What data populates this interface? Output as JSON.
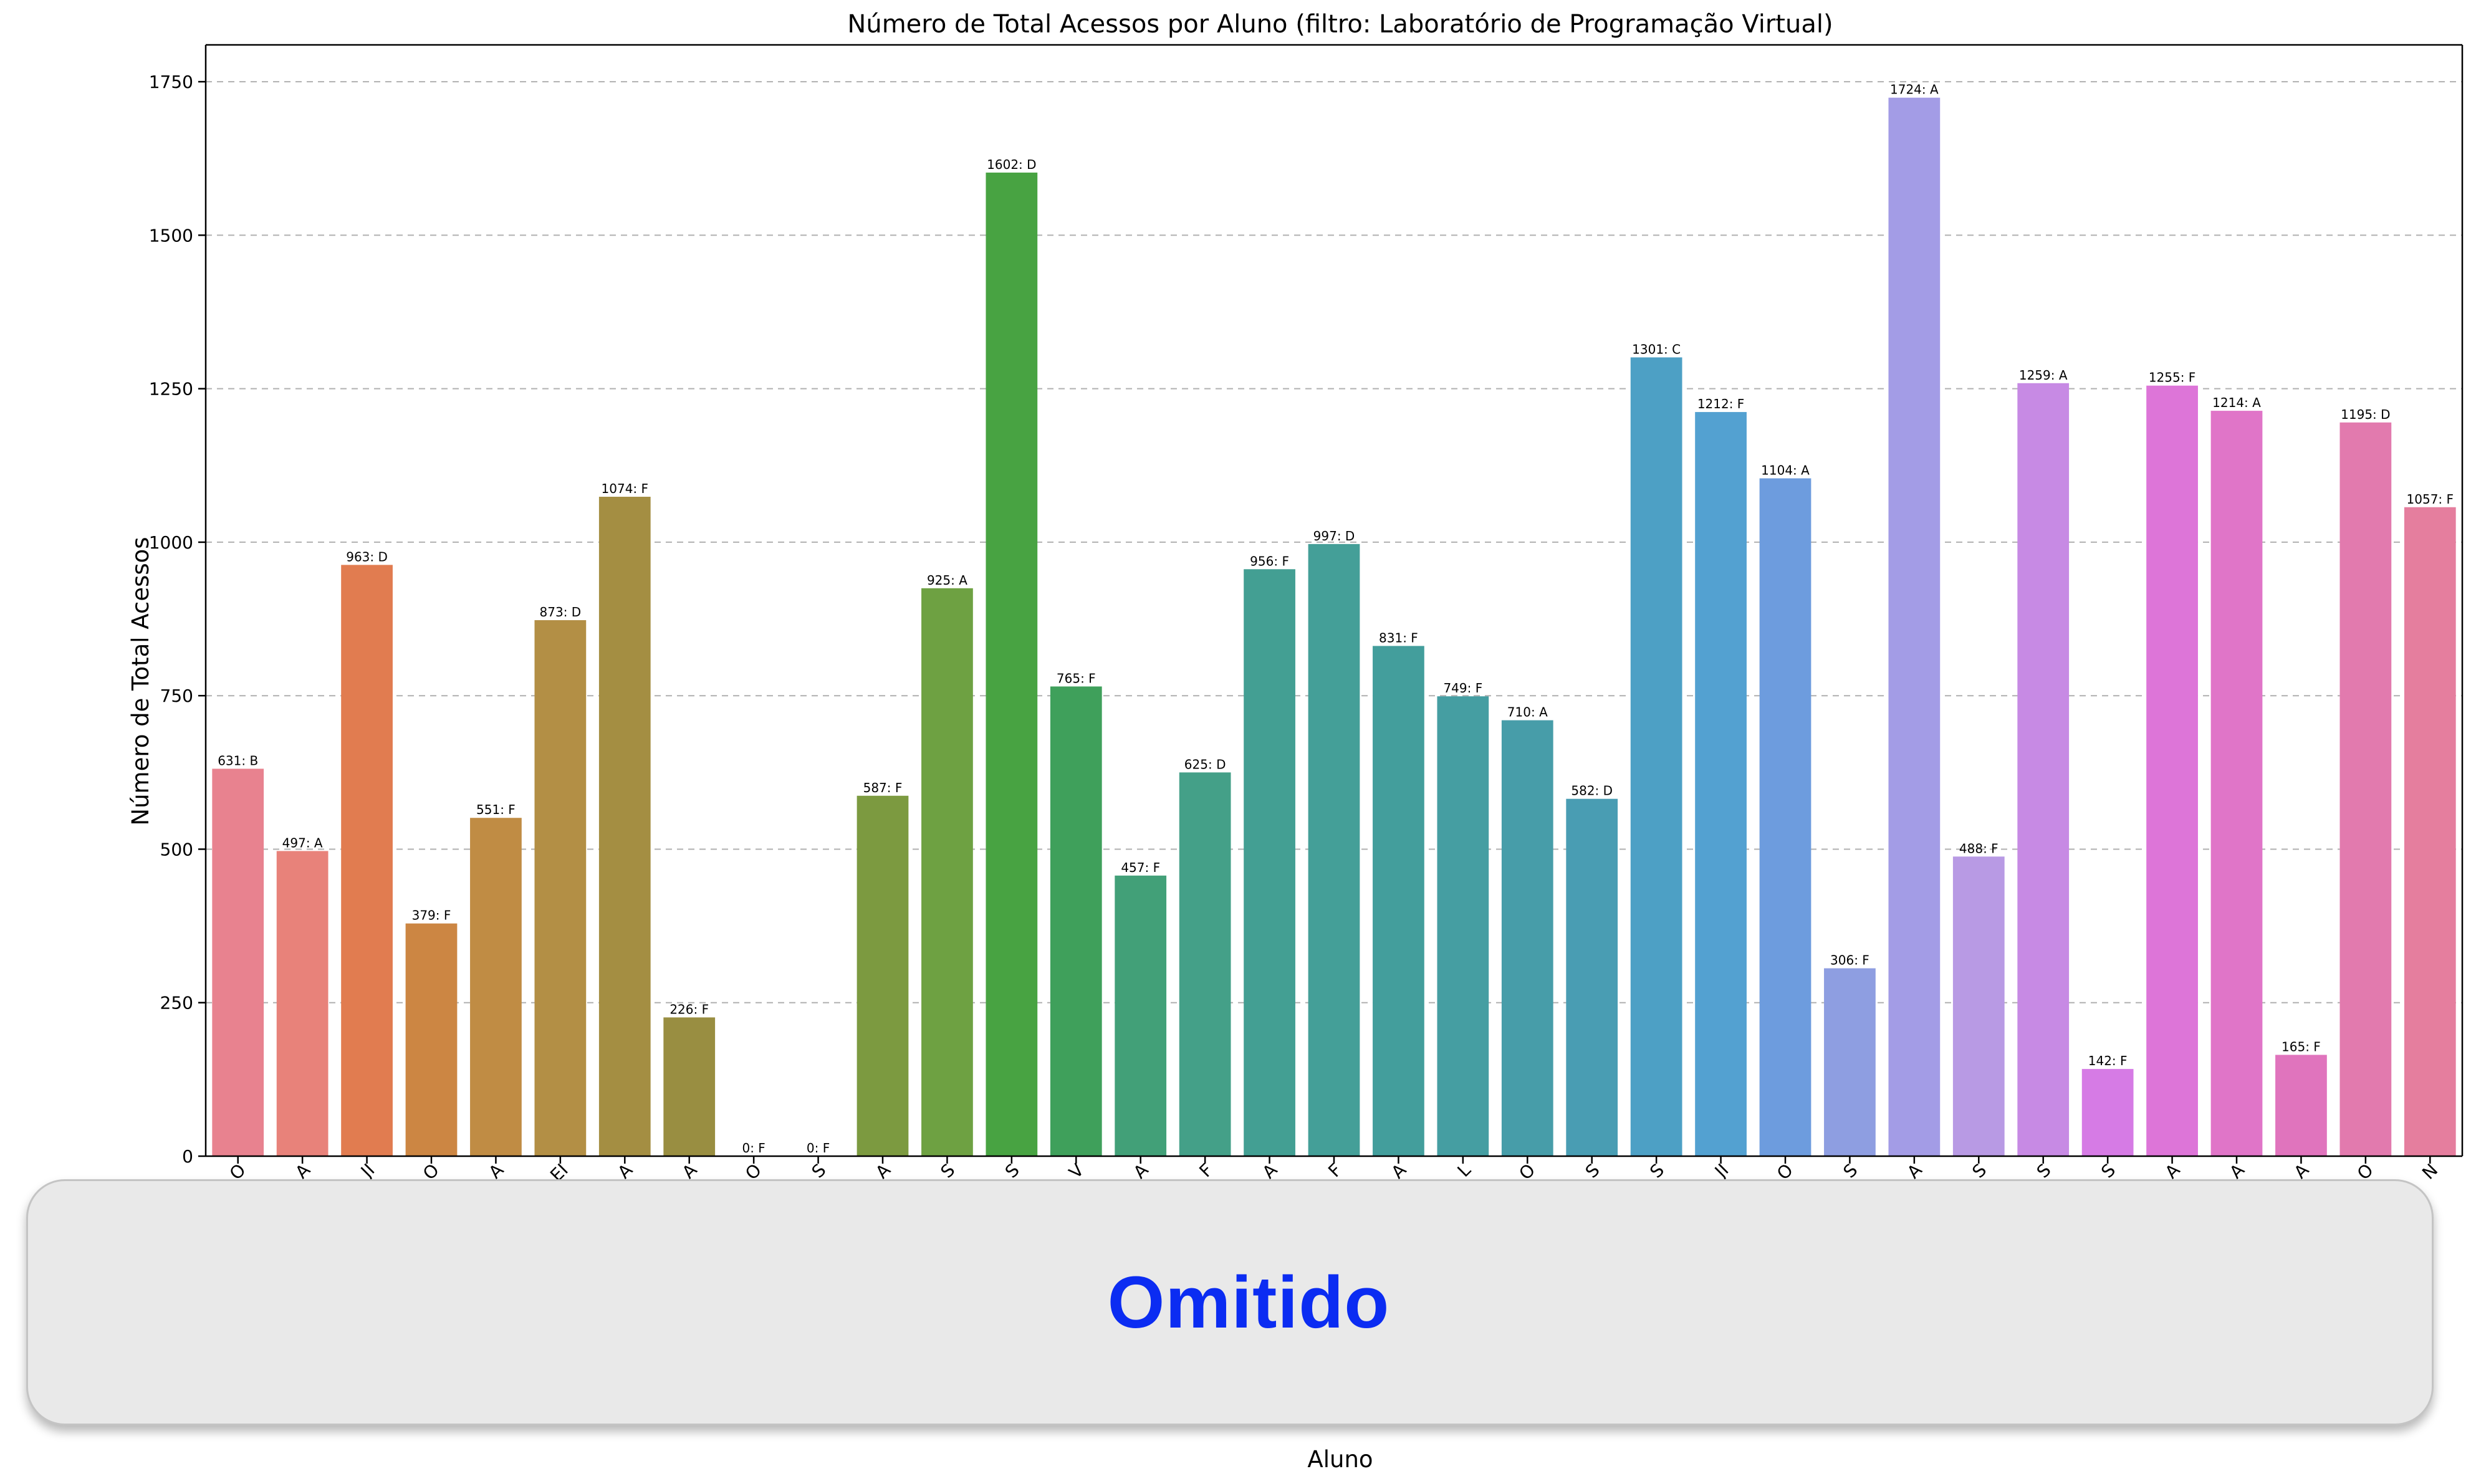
{
  "chart_data": {
    "type": "bar",
    "title": "Número de Total Acessos por Aluno (filtro: Laboratório de Programação Virtual)",
    "xlabel": "Aluno",
    "ylabel": "Número de Total Acessos",
    "ylim": [
      0,
      1810
    ],
    "yticks": [
      0,
      250,
      500,
      750,
      1000,
      1250,
      1500,
      1750
    ],
    "grid": "y",
    "legend": "none",
    "categories": [
      "O",
      "A",
      "JI",
      "O",
      "A",
      "EI",
      "A",
      "A",
      "O",
      "S",
      "A",
      "S",
      "S",
      "V",
      "A",
      "F",
      "A",
      "F",
      "A",
      "L",
      "O",
      "S",
      "S",
      "JI",
      "O",
      "S",
      "A",
      "S",
      "S",
      "S",
      "A",
      "A",
      "A",
      "O",
      "N"
    ],
    "values": [
      631,
      497,
      963,
      379,
      551,
      873,
      1074,
      226,
      0,
      0,
      587,
      925,
      1602,
      765,
      457,
      625,
      956,
      997,
      831,
      749,
      710,
      582,
      1301,
      1212,
      1104,
      306,
      1724,
      488,
      1259,
      142,
      1255,
      1214,
      165,
      1195,
      1057
    ],
    "grades": [
      "B",
      "A",
      "D",
      "F",
      "F",
      "D",
      "F",
      "F",
      "F",
      "F",
      "F",
      "A",
      "D",
      "F",
      "F",
      "D",
      "F",
      "D",
      "F",
      "F",
      "A",
      "D",
      "C",
      "F",
      "A",
      "F",
      "A",
      "F",
      "A",
      "F",
      "F",
      "A",
      "F",
      "D",
      "F"
    ],
    "colors": [
      "#e8828f",
      "#e8827a",
      "#e17c50",
      "#cc8643",
      "#c08c44",
      "#b38f45",
      "#a48e42",
      "#998e41",
      "#8f9540",
      "#879a40",
      "#7c9a40",
      "#6ea142",
      "#48a342",
      "#3fa05b",
      "#42a078",
      "#44a088",
      "#439f93",
      "#449f98",
      "#439e9c",
      "#459ea2",
      "#479da9",
      "#499db3",
      "#4da0c5",
      "#53a1d1",
      "#6d9cde",
      "#8e9ee1",
      "#a39ce6",
      "#b89ae4",
      "#c78ae4",
      "#d67be5",
      "#dd75d8",
      "#e075c8",
      "#e074bd",
      "#e27aae",
      "#e57e9e"
    ]
  },
  "overlay": {
    "label": "Omitido"
  }
}
